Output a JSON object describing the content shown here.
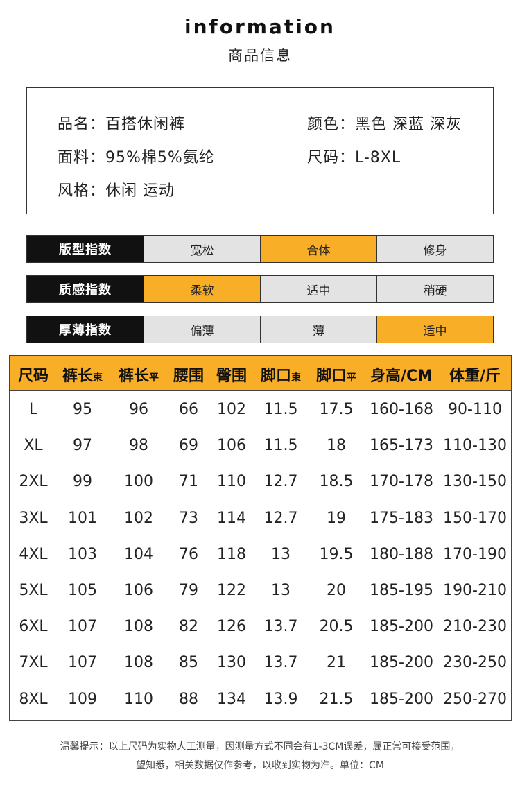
{
  "header": {
    "title_en": "information",
    "title_cn": "商品信息"
  },
  "info": {
    "name": "品名：百搭休闲裤",
    "color": "颜色：黑色 深蓝 深灰",
    "fabric": "面料：95%棉5%氨纶",
    "size": "尺码：L-8XL",
    "style": "风格：休闲 运动"
  },
  "indexes": [
    {
      "label": "版型指数",
      "options": [
        "宽松",
        "合体",
        "修身"
      ],
      "active": 1
    },
    {
      "label": "质感指数",
      "options": [
        "柔软",
        "适中",
        "稍硬"
      ],
      "active": 0
    },
    {
      "label": "厚薄指数",
      "options": [
        "偏薄",
        "薄",
        "适中"
      ],
      "active": 2
    }
  ],
  "size_table": {
    "headers": [
      {
        "main": "尺码",
        "sub": ""
      },
      {
        "main": "裤长",
        "sub": "束"
      },
      {
        "main": "裤长",
        "sub": "平"
      },
      {
        "main": "腰围",
        "sub": ""
      },
      {
        "main": "臀围",
        "sub": ""
      },
      {
        "main": "脚口",
        "sub": "束"
      },
      {
        "main": "脚口",
        "sub": "平"
      },
      {
        "main": "身高/CM",
        "sub": ""
      },
      {
        "main": "体重/斤",
        "sub": ""
      }
    ],
    "rows": [
      [
        "L",
        "95",
        "96",
        "66",
        "102",
        "11.5",
        "17.5",
        "160-168",
        "90-110"
      ],
      [
        "XL",
        "97",
        "98",
        "69",
        "106",
        "11.5",
        "18",
        "165-173",
        "110-130"
      ],
      [
        "2XL",
        "99",
        "100",
        "71",
        "110",
        "12.7",
        "18.5",
        "170-178",
        "130-150"
      ],
      [
        "3XL",
        "101",
        "102",
        "73",
        "114",
        "12.7",
        "19",
        "175-183",
        "150-170"
      ],
      [
        "4XL",
        "103",
        "104",
        "76",
        "118",
        "13",
        "19.5",
        "180-188",
        "170-190"
      ],
      [
        "5XL",
        "105",
        "106",
        "79",
        "122",
        "13",
        "20",
        "185-195",
        "190-210"
      ],
      [
        "6XL",
        "107",
        "108",
        "82",
        "126",
        "13.7",
        "20.5",
        "185-200",
        "210-230"
      ],
      [
        "7XL",
        "107",
        "108",
        "85",
        "130",
        "13.7",
        "21",
        "185-200",
        "230-250"
      ],
      [
        "8XL",
        "109",
        "110",
        "88",
        "134",
        "13.9",
        "21.5",
        "185-200",
        "250-270"
      ]
    ]
  },
  "footer": {
    "line1": "温馨提示：以上尺码为实物人工测量，因测量方式不同会有1-3CM误差，属正常可接受范围，",
    "line2": "望知悉，相关数据仅作参考，以收到实物为准。单位：CM"
  },
  "colors": {
    "accent": "#f8ae26",
    "label_bg": "#111111",
    "inactive": "#e3e3e3"
  }
}
